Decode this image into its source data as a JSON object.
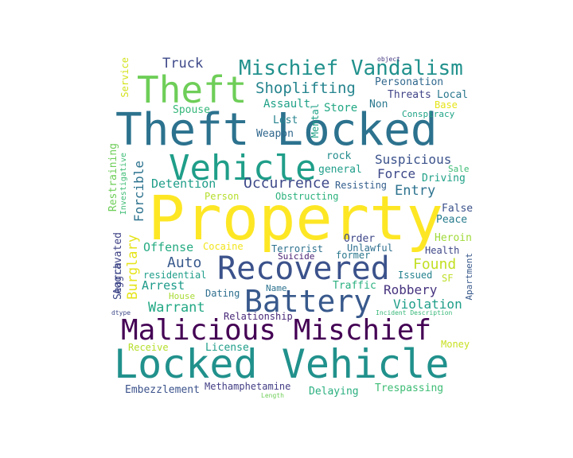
{
  "words": [
    {
      "text": "Property",
      "color": "#fde725"
    },
    {
      "text": "Theft Locked",
      "color": "#2c728e"
    },
    {
      "text": "Locked Vehicle",
      "color": "#21918c"
    },
    {
      "text": "Malicious Mischief",
      "color": "#440154"
    },
    {
      "text": "Recovered",
      "color": "#3b528b"
    },
    {
      "text": "Vehicle",
      "color": "#1f9e89"
    },
    {
      "text": "Battery",
      "color": "#38598c"
    },
    {
      "text": "Theft",
      "color": "#6ece58"
    },
    {
      "text": "Mischief Vandalism",
      "color": "#21918c"
    },
    {
      "text": "Shoplifting",
      "color": "#25848e"
    },
    {
      "text": "Truck",
      "color": "#3e4989"
    },
    {
      "text": "Personation",
      "color": "#31688e"
    },
    {
      "text": "Threats",
      "color": "#414487"
    },
    {
      "text": "Local",
      "color": "#2a788e"
    },
    {
      "text": "object",
      "color": "#443983"
    },
    {
      "text": "Spouse",
      "color": "#35b779"
    },
    {
      "text": "Assault",
      "color": "#1fa187"
    },
    {
      "text": "Store",
      "color": "#22a884"
    },
    {
      "text": "Non",
      "color": "#2a788e"
    },
    {
      "text": "Base",
      "color": "#e5e419"
    },
    {
      "text": "Conspiracy",
      "color": "#20a486"
    },
    {
      "text": "Lost",
      "color": "#26828e"
    },
    {
      "text": "Mental",
      "color": "#1fa187"
    },
    {
      "text": "Weapon",
      "color": "#31688e"
    },
    {
      "text": "Service",
      "color": "#d2e21b"
    },
    {
      "text": "Restraining",
      "color": "#6ece58"
    },
    {
      "text": "Investigative",
      "color": "#3dbc74"
    },
    {
      "text": "Forcible",
      "color": "#2c728e"
    },
    {
      "text": "Suspicious",
      "color": "#3b528b"
    },
    {
      "text": "Detention",
      "color": "#1f9e89"
    },
    {
      "text": "Occurrence",
      "color": "#3e4989"
    },
    {
      "text": "rock",
      "color": "#228c8d"
    },
    {
      "text": "general",
      "color": "#1f9e89"
    },
    {
      "text": "Force",
      "color": "#3e4989"
    },
    {
      "text": "Sale",
      "color": "#3dbc74"
    },
    {
      "text": "Driving",
      "color": "#1fa187"
    },
    {
      "text": "Resisting",
      "color": "#355f8d"
    },
    {
      "text": "Entry",
      "color": "#2c728e"
    },
    {
      "text": "Person",
      "color": "#b5de2b"
    },
    {
      "text": "Obstructing",
      "color": "#2db27d"
    },
    {
      "text": "Aggravated",
      "color": "#414487"
    },
    {
      "text": "Search",
      "color": "#3e4989"
    },
    {
      "text": "False",
      "color": "#3b528b"
    },
    {
      "text": "Peace",
      "color": "#287c8e"
    },
    {
      "text": "Burglary",
      "color": "#e5e419"
    },
    {
      "text": "Offense",
      "color": "#25ab82"
    },
    {
      "text": "Cocaine",
      "color": "#f1e51d"
    },
    {
      "text": "Order",
      "color": "#3f4788"
    },
    {
      "text": "Unlawful",
      "color": "#2e6f8e"
    },
    {
      "text": "Heroin",
      "color": "#a0da39"
    },
    {
      "text": "Terrorist",
      "color": "#2d718e"
    },
    {
      "text": "former",
      "color": "#2a788e"
    },
    {
      "text": "Found",
      "color": "#c2df23"
    },
    {
      "text": "Auto",
      "color": "#38598c"
    },
    {
      "text": "Suicide",
      "color": "#482173"
    },
    {
      "text": "residential",
      "color": "#1f9e89"
    },
    {
      "text": "Issued",
      "color": "#26828e"
    },
    {
      "text": "SF",
      "color": "#bddf26"
    },
    {
      "text": "Apartment",
      "color": "#38598c"
    },
    {
      "text": "Health",
      "color": "#3f4788"
    },
    {
      "text": "Arrest",
      "color": "#1e9b8a"
    },
    {
      "text": "Name",
      "color": "#2c728e"
    },
    {
      "text": "Traffic",
      "color": "#2ab07f"
    },
    {
      "text": "Robbery",
      "color": "#46327e"
    },
    {
      "text": "House",
      "color": "#a8db34"
    },
    {
      "text": "Dating",
      "color": "#2e6f8e"
    },
    {
      "text": "Warrant",
      "color": "#22a884"
    },
    {
      "text": "Violation",
      "color": "#1f9e89"
    },
    {
      "text": "dtype",
      "color": "#3e4989"
    },
    {
      "text": "Relationship",
      "color": "#482878"
    },
    {
      "text": "Incident Description",
      "color": "#37b878"
    },
    {
      "text": "Receive",
      "color": "#b5de2b"
    },
    {
      "text": "License",
      "color": "#1f9e89"
    },
    {
      "text": "Money",
      "color": "#c8e020"
    },
    {
      "text": "Embezzlement",
      "color": "#3b528b"
    },
    {
      "text": "Methamphetamine",
      "color": "#433e85"
    },
    {
      "text": "Delaying",
      "color": "#29af7f"
    },
    {
      "text": "Trespassing",
      "color": "#3dbc74"
    },
    {
      "text": "Length",
      "color": "#6ece58"
    }
  ]
}
